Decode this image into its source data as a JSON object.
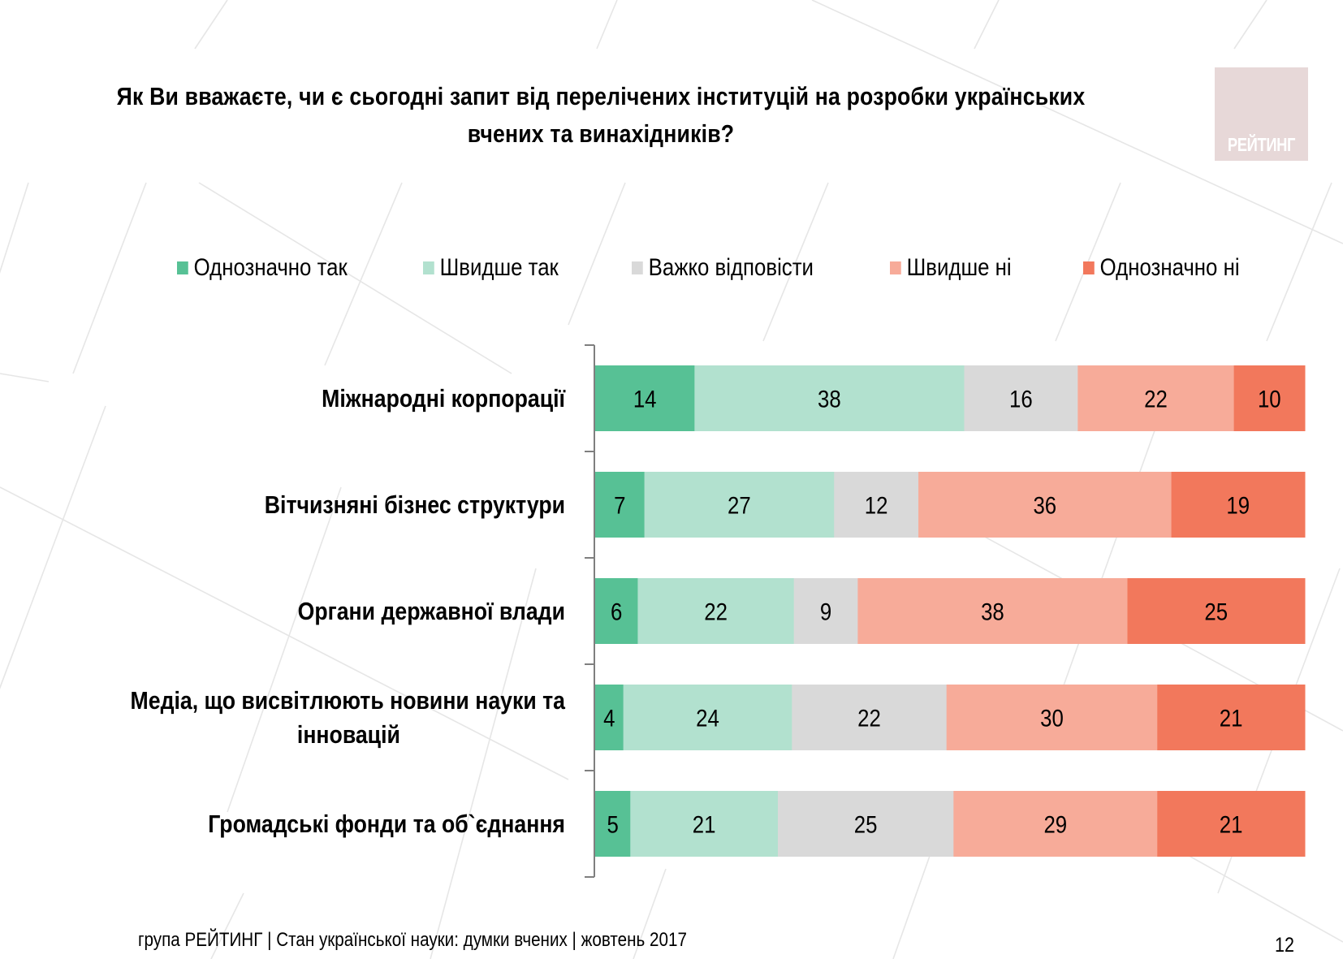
{
  "slide": {
    "title": "Як Ви вважаєте, чи є сьогодні запит від перелічених інституцій на розробки українських вчених та винахідників?",
    "title_lines": [
      "Як Ви вважаєте, чи є сьогодні запит від перелічених інституцій на розробки українських",
      "вчених та винахідників?"
    ],
    "logo_text": "РЕЙТИНГ",
    "footer": "група РЕЙТИНГ | Стан української науки: думки вчених | жовтень 2017",
    "page_number": "12"
  },
  "chart_data": {
    "type": "bar",
    "orientation": "horizontal",
    "stacked": "100%",
    "title": "Як Ви вважаєте, чи є сьогодні запит від перелічених інституцій на розробки українських вчених та винахідників?",
    "xlabel": "",
    "ylabel": "",
    "grid": false,
    "legend_position": "top",
    "categories": [
      "Міжнародні корпорації",
      "Вітчизняні бізнес структури",
      "Органи державної влади",
      "Медіа, що висвітлюють новини науки та інновацій",
      "Громадські фонди та об`єднання"
    ],
    "category_lines": [
      [
        "Міжнародні корпорації"
      ],
      [
        "Вітчизняні бізнес структури"
      ],
      [
        "Органи державної влади"
      ],
      [
        "Медіа, що висвітлюють новини науки та",
        "інновацій"
      ],
      [
        "Громадські фонди та об`єднання"
      ]
    ],
    "series": [
      {
        "name": "Однозначно так",
        "color": "#57c195",
        "values": [
          14,
          7,
          6,
          4,
          5
        ]
      },
      {
        "name": "Швидше так",
        "color": "#b2e1cf",
        "values": [
          38,
          27,
          22,
          24,
          21
        ]
      },
      {
        "name": "Важко відповісти",
        "color": "#d9d9d9",
        "values": [
          16,
          12,
          9,
          22,
          25
        ]
      },
      {
        "name": "Швидше ні",
        "color": "#f7ab99",
        "values": [
          22,
          36,
          38,
          30,
          29
        ]
      },
      {
        "name": "Однозначно ні",
        "color": "#f2785c",
        "values": [
          10,
          19,
          25,
          21,
          21
        ]
      }
    ],
    "unit": "%"
  }
}
